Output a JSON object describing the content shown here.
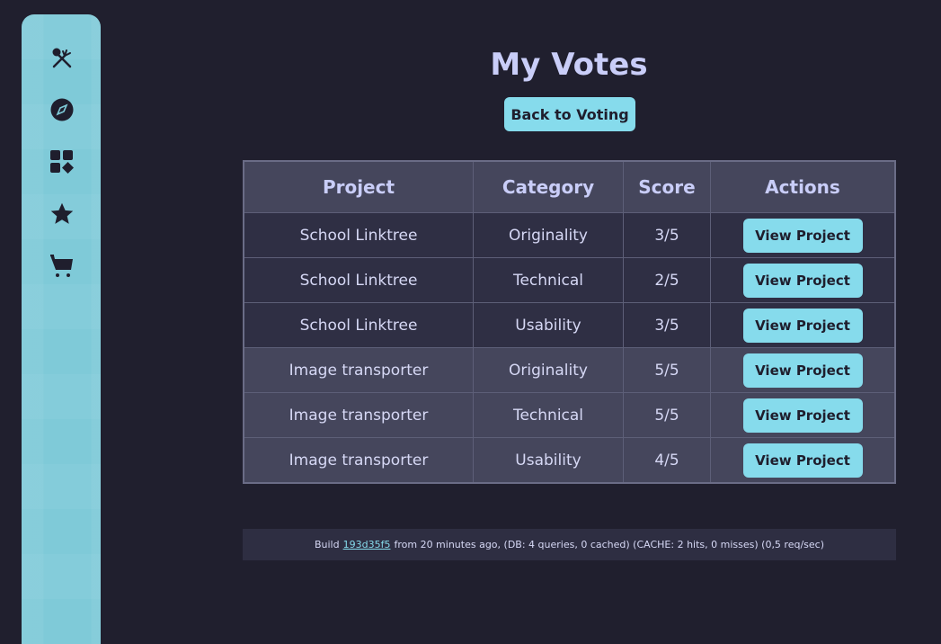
{
  "sidebar": {
    "items": [
      {
        "icon": "utensils-icon"
      },
      {
        "icon": "compass-icon"
      },
      {
        "icon": "apps-icon"
      },
      {
        "icon": "star-icon"
      },
      {
        "icon": "cart-icon"
      }
    ]
  },
  "title": "My Votes",
  "back_label": "Back to Voting",
  "table": {
    "headers": [
      "Project",
      "Category",
      "Score",
      "Actions"
    ],
    "rows": [
      {
        "project": "School Linktree",
        "category": "Originality",
        "score": "3/5",
        "action": "View Project"
      },
      {
        "project": "School Linktree",
        "category": "Technical",
        "score": "2/5",
        "action": "View Project"
      },
      {
        "project": "School Linktree",
        "category": "Usability",
        "score": "3/5",
        "action": "View Project"
      },
      {
        "project": "Image transporter",
        "category": "Originality",
        "score": "5/5",
        "action": "View Project"
      },
      {
        "project": "Image transporter",
        "category": "Technical",
        "score": "5/5",
        "action": "View Project"
      },
      {
        "project": "Image transporter",
        "category": "Usability",
        "score": "4/5",
        "action": "View Project"
      }
    ]
  },
  "footer": {
    "prefix": "Build",
    "hash": "193d35f5",
    "suffix": "from 20 minutes ago, (DB: 4 queries, 0 cached) (CACHE: 2 hits, 0 misses) (0,5 req/sec)"
  },
  "colors": {
    "accent": "#86dbec",
    "background": "#201f2e",
    "sidebar": "#7fcad8"
  }
}
